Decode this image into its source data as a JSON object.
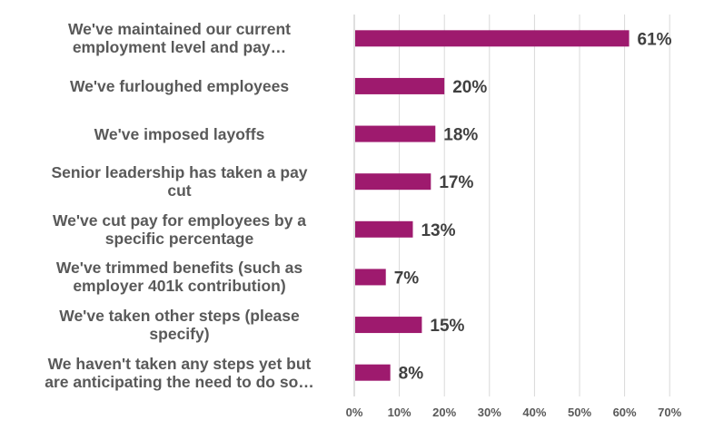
{
  "chart_data": {
    "type": "bar",
    "orientation": "horizontal",
    "categories": [
      [
        "We've maintained our current",
        "employment level and pay…"
      ],
      [
        "We've furloughed employees"
      ],
      [
        "We've imposed layoffs"
      ],
      [
        "Senior leadership has taken a pay",
        "cut"
      ],
      [
        "We've cut pay for employees by a",
        "specific percentage"
      ],
      [
        "We've trimmed benefits (such as",
        "employer 401k contribution)"
      ],
      [
        "We've taken other steps (please",
        "specify)"
      ],
      [
        "We haven't taken any steps yet but",
        "are anticipating the need to do so…"
      ]
    ],
    "values": [
      61,
      20,
      18,
      17,
      13,
      7,
      15,
      8
    ],
    "data_labels": [
      "61%",
      "20%",
      "18%",
      "17%",
      "13%",
      "7%",
      "15%",
      "8%"
    ],
    "xlim": [
      0,
      70
    ],
    "x_ticks": [
      "0%",
      "10%",
      "20%",
      "30%",
      "40%",
      "50%",
      "60%",
      "70%"
    ],
    "grid": "vertical",
    "legend": "none",
    "colors": {
      "bar": "#9e1a6e",
      "label_text": "#595959",
      "value_text": "#404040",
      "grid": "#d9d9d9"
    }
  }
}
